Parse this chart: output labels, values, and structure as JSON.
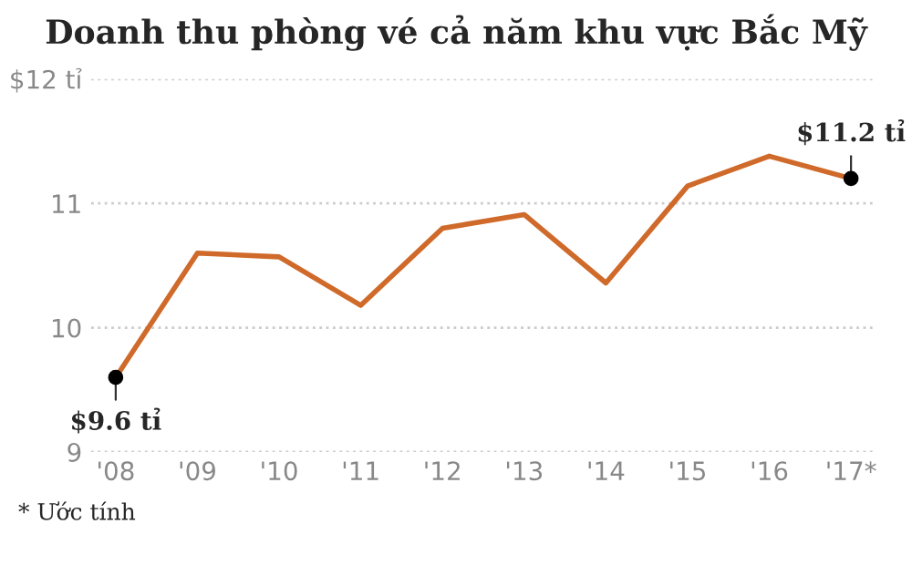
{
  "chart_data": {
    "type": "line",
    "title": "Doanh thu phòng vé cả năm khu vực Bắc Mỹ",
    "categories": [
      "'08",
      "'09",
      "'10",
      "'11",
      "'12",
      "'13",
      "'14",
      "'15",
      "'16",
      "'17*"
    ],
    "series": [
      {
        "color": "#cf6a2a",
        "values": [
          9.6,
          10.6,
          10.57,
          10.18,
          10.8,
          10.91,
          10.36,
          11.14,
          11.38,
          11.2
        ]
      }
    ],
    "ylim": [
      9,
      12
    ],
    "yticks": [
      9,
      10,
      11,
      {
        "value": 12,
        "label": "$12 tỉ"
      }
    ],
    "grid": "y",
    "annotations": [
      {
        "text": "$9.6 tỉ",
        "x": "'08",
        "y": 9.6
      },
      {
        "text": "$11.2 tỉ",
        "x": "'17*",
        "y": 11.2
      },
      "* Ước tính"
    ]
  }
}
